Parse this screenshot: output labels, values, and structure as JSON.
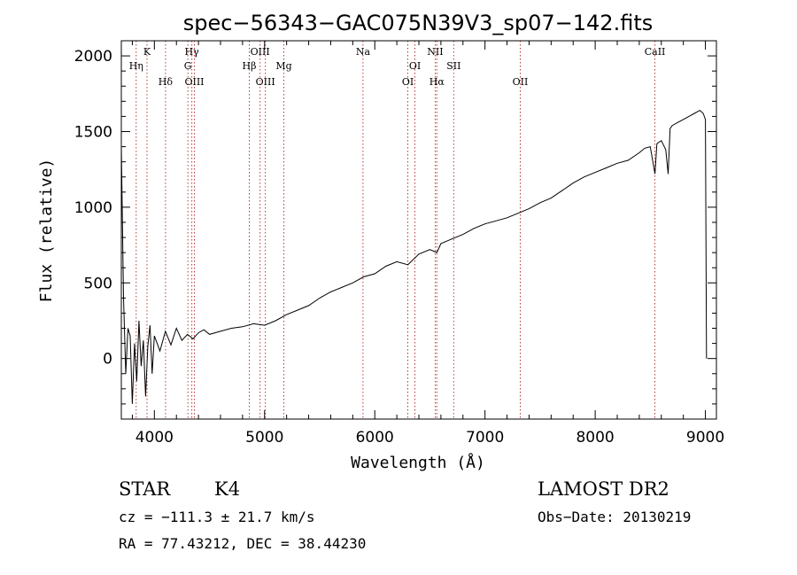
{
  "chart_data": {
    "type": "line",
    "title": "spec−56343−GAC075N39V3_sp07−142.fits",
    "xlabel": "Wavelength (Å)",
    "ylabel": "Flux (relative)",
    "xlim": [
      3700,
      9100
    ],
    "ylim": [
      -400,
      2100
    ],
    "xticks": [
      4000,
      5000,
      6000,
      7000,
      8000,
      9000
    ],
    "yticks": [
      0,
      500,
      1000,
      1500,
      2000
    ],
    "grid": false,
    "series": [
      {
        "color": "#000000",
        "x": [
          3700,
          3720,
          3740,
          3760,
          3780,
          3800,
          3820,
          3840,
          3860,
          3880,
          3900,
          3920,
          3940,
          3960,
          3980,
          4000,
          4050,
          4100,
          4150,
          4200,
          4250,
          4300,
          4350,
          4400,
          4450,
          4500,
          4600,
          4700,
          4800,
          4900,
          5000,
          5100,
          5200,
          5300,
          5400,
          5500,
          5600,
          5700,
          5800,
          5900,
          6000,
          6100,
          6200,
          6300,
          6400,
          6500,
          6563,
          6600,
          6700,
          6800,
          6900,
          7000,
          7100,
          7200,
          7300,
          7400,
          7500,
          7600,
          7700,
          7800,
          7900,
          8000,
          8100,
          8200,
          8300,
          8400,
          8450,
          8500,
          8542,
          8560,
          8600,
          8640,
          8662,
          8680,
          8700,
          8750,
          8800,
          8850,
          8900,
          8950,
          8980,
          9000,
          9010
        ],
        "y": [
          1400,
          400,
          -100,
          200,
          150,
          -300,
          100,
          -150,
          250,
          -50,
          120,
          -250,
          80,
          220,
          -100,
          150,
          50,
          180,
          90,
          200,
          120,
          160,
          130,
          170,
          190,
          160,
          180,
          200,
          210,
          230,
          220,
          250,
          290,
          320,
          350,
          400,
          440,
          470,
          500,
          540,
          560,
          610,
          640,
          620,
          690,
          720,
          700,
          760,
          790,
          820,
          860,
          890,
          910,
          930,
          960,
          990,
          1030,
          1060,
          1110,
          1160,
          1200,
          1230,
          1260,
          1290,
          1310,
          1360,
          1390,
          1400,
          1220,
          1420,
          1440,
          1380,
          1220,
          1520,
          1540,
          1560,
          1580,
          1600,
          1620,
          1640,
          1620,
          1580,
          0
        ]
      }
    ],
    "line_markers": [
      {
        "label": "Hη",
        "wave": 3835,
        "row": 2
      },
      {
        "label": "K",
        "wave": 3933,
        "row": 1
      },
      {
        "label": "Hδ",
        "wave": 4101,
        "row": 3
      },
      {
        "label": "Hγ",
        "wave": 4340,
        "row": 1
      },
      {
        "label": "G",
        "wave": 4304,
        "row": 2
      },
      {
        "label": "OIII",
        "wave": 4363,
        "row": 3
      },
      {
        "label": "OIII",
        "wave": 4959,
        "row": 1
      },
      {
        "label": "Hβ",
        "wave": 4861,
        "row": 2
      },
      {
        "label": "OIII",
        "wave": 5007,
        "row": 3
      },
      {
        "label": "Mg",
        "wave": 5175,
        "row": 2
      },
      {
        "label": "Na",
        "wave": 5893,
        "row": 1
      },
      {
        "label": "OI",
        "wave": 6300,
        "row": 3
      },
      {
        "label": "OI",
        "wave": 6364,
        "row": 2
      },
      {
        "label": "NII",
        "wave": 6548,
        "row": 1
      },
      {
        "label": "Hα",
        "wave": 6563,
        "row": 3
      },
      {
        "label": "SII",
        "wave": 6716,
        "row": 2
      },
      {
        "label": "OII",
        "wave": 7320,
        "row": 3
      },
      {
        "label": "CaII",
        "wave": 8542,
        "row": 1
      }
    ]
  },
  "info": {
    "object_class": "STAR",
    "subclass": "K4",
    "redshift": "cz = −111.3 ± 21.7 km/s",
    "coords": "RA =  77.43212, DEC =  38.44230",
    "survey": "LAMOST DR2",
    "obs_date": "Obs−Date: 20130219"
  },
  "colors": {
    "spectrum": "#000000",
    "marker_line": "#b22222"
  }
}
